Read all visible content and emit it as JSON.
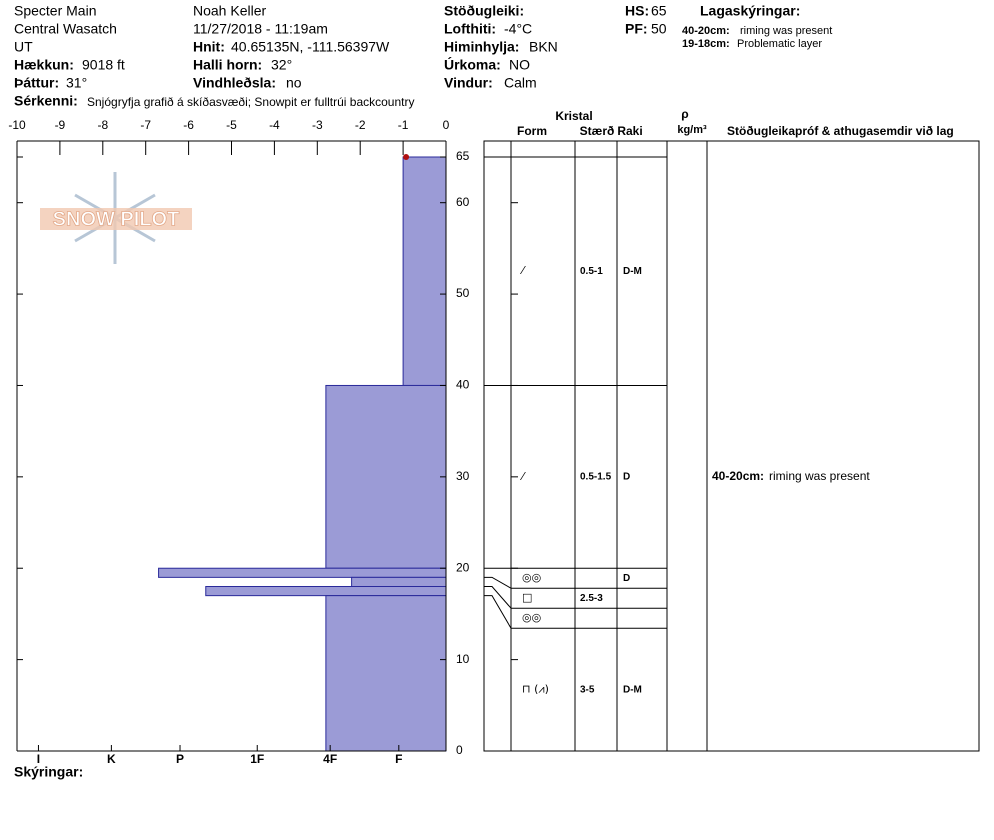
{
  "header": {
    "location": [
      "Specter Main",
      "Central Wasatch",
      "UT"
    ],
    "elevation": {
      "label": "Hækkun:",
      "value": "9018 ft"
    },
    "aspect": {
      "label": "Þáttur:",
      "value": "31°"
    },
    "observer": "Noah Keller",
    "datetime": "11/27/2018 - 11:19am",
    "coordinates": {
      "label": "Hnit:",
      "value": "40.65135N, -111.56397W"
    },
    "slope": {
      "label": "Halli horn:",
      "value": "32°"
    },
    "wind_loading": {
      "label": "Vindhleðsla:",
      "value": "no"
    },
    "stability_label": "Stöðugleiki:",
    "air_temp": {
      "label": "Lofthiti:",
      "value": "-4°C"
    },
    "sky": {
      "label": "Himinhylja:",
      "value": "BKN"
    },
    "precip": {
      "label": "Úrkoma:",
      "value": "NO"
    },
    "wind": {
      "label": "Vindur:",
      "value": "Calm"
    },
    "hs": {
      "label": "HS:",
      "value": 65
    },
    "pf": {
      "label": "PF:",
      "value": 50
    },
    "notes_title": "Lagaskýringar:",
    "notes": [
      {
        "range": "40-20cm:",
        "text": "riming was present"
      },
      {
        "range": "19-18cm:",
        "text": "Problematic layer"
      }
    ],
    "features": {
      "label": "Sérkenni:",
      "value": "Snjógryfja grafið á skíðasvæði; Snowpit er fulltrúi backcountry"
    }
  },
  "chart_data": {
    "type": "hardness-profile",
    "logo": "SNOW PILOT",
    "xlim": [
      -10,
      0
    ],
    "xticks": [
      -10,
      -9,
      -8,
      -7,
      -6,
      -5,
      -4,
      -3,
      -2,
      -1,
      0
    ],
    "hardness_ticks": [
      {
        "value": -9.5,
        "label": "I"
      },
      {
        "value": -7.8,
        "label": "K"
      },
      {
        "value": -6.2,
        "label": "P"
      },
      {
        "value": -4.4,
        "label": "1F"
      },
      {
        "value": -2.7,
        "label": "4F"
      },
      {
        "value": -1.1,
        "label": "F"
      }
    ],
    "ylim": [
      0,
      65
    ],
    "yticks": [
      0,
      10,
      20,
      30,
      40,
      50,
      60,
      65
    ],
    "color": "#9b9bd6",
    "layers": [
      {
        "top": 65,
        "bottom": 40,
        "hardness": -1
      },
      {
        "top": 40,
        "bottom": 20,
        "hardness": -2.8
      },
      {
        "top": 20,
        "bottom": 19,
        "hardness": -6.7
      },
      {
        "top": 19,
        "bottom": 18,
        "hardness": -2.2
      },
      {
        "top": 18,
        "bottom": 17,
        "hardness": -5.6
      },
      {
        "top": 17,
        "bottom": 0,
        "hardness": -2.8
      }
    ]
  },
  "layer_table": {
    "headers": {
      "crystal": "Kristal",
      "form": "Form",
      "size": "Stærð",
      "moisture": "Raki",
      "density": "ρ",
      "density_unit": "kg/m³",
      "comments": "Stöðugleikapróf & athugasemdir við lag"
    },
    "rows": [
      {
        "form": "⁄",
        "size": "0.5-1",
        "moisture": "D-M"
      },
      {
        "form": "⁄",
        "size": "0.5-1.5",
        "moisture": "D",
        "comment": {
          "range": "40-20cm:",
          "text": "riming was present"
        }
      },
      {
        "form": "◎◎",
        "moisture": "D"
      },
      {
        "form": "□",
        "size": "2.5-3"
      },
      {
        "form": "◎◎"
      },
      {
        "form": "⊓ (⩘)",
        "size": "3-5",
        "moisture": "D-M"
      }
    ]
  },
  "footer": "Skýringar:"
}
